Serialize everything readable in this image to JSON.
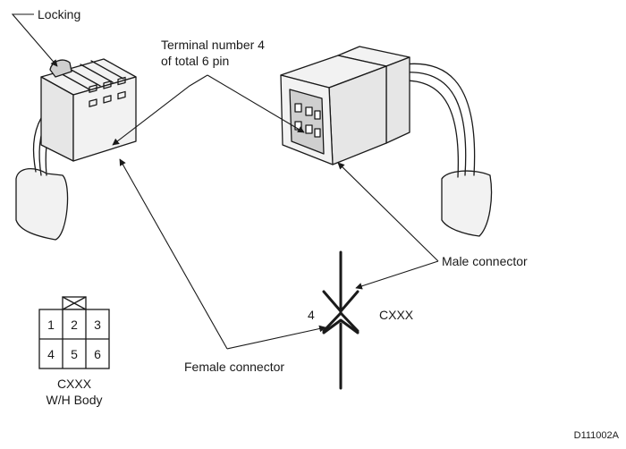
{
  "labels": {
    "locking": "Locking",
    "terminal_line1": "Terminal number 4",
    "terminal_line2": "of total 6 pin",
    "male_connector": "Male connector",
    "female_connector": "Female connector",
    "symbol_pin": "4",
    "symbol_code": "CXXX",
    "body_code": "CXXX",
    "body_label": "W/H Body",
    "figure_id": "D111002A"
  },
  "pin_grid": {
    "top_row": [
      "1",
      "2",
      "3"
    ],
    "bottom_row": [
      "4",
      "5",
      "6"
    ]
  }
}
